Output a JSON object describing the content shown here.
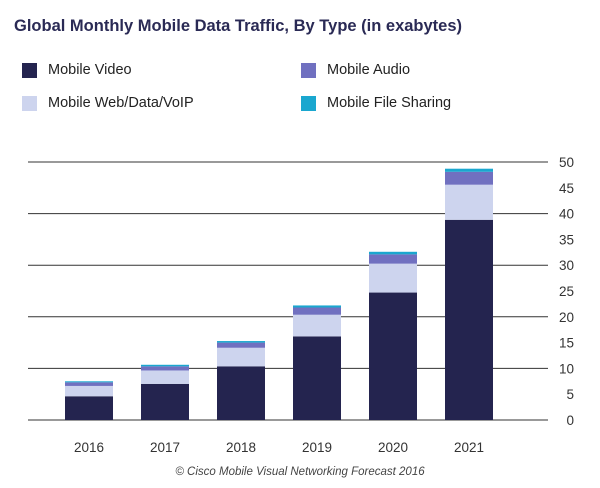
{
  "title": "Global Monthly Mobile Data Traffic, By Type (in exabytes)",
  "footer": "© Cisco Mobile Visual Networking Forecast 2016",
  "legend": [
    {
      "label": "Mobile Video",
      "color": "#24244f"
    },
    {
      "label": "Mobile Audio",
      "color": "#7070c0"
    },
    {
      "label": "Mobile Web/Data/VoIP",
      "color": "#cdd4ee"
    },
    {
      "label": "Mobile File Sharing",
      "color": "#1aa7cf"
    }
  ],
  "chart_data": {
    "type": "bar",
    "stacked": true,
    "title": "Global Monthly Mobile Data Traffic, By Type (in exabytes)",
    "categories": [
      "2016",
      "2017",
      "2018",
      "2019",
      "2020",
      "2021"
    ],
    "series": [
      {
        "name": "Mobile Video",
        "color": "#24244f",
        "values": [
          4.6,
          7.0,
          10.4,
          16.2,
          24.7,
          38.8
        ]
      },
      {
        "name": "Mobile Web/Data/VoIP",
        "color": "#cdd4ee",
        "values": [
          2.0,
          2.6,
          3.6,
          4.2,
          5.6,
          6.8
        ]
      },
      {
        "name": "Mobile Audio",
        "color": "#7070c0",
        "values": [
          0.7,
          0.8,
          1.0,
          1.4,
          1.8,
          2.5
        ]
      },
      {
        "name": "Mobile File Sharing",
        "color": "#1aa7cf",
        "values": [
          0.2,
          0.3,
          0.3,
          0.4,
          0.5,
          0.6
        ]
      }
    ],
    "yticks": [
      0,
      5,
      10,
      15,
      20,
      25,
      30,
      35,
      40,
      45,
      50
    ],
    "ylim": [
      0,
      50
    ],
    "gridlines": [
      10,
      20,
      30,
      40,
      50
    ],
    "y_axis_side": "right",
    "legend_position": "top"
  }
}
